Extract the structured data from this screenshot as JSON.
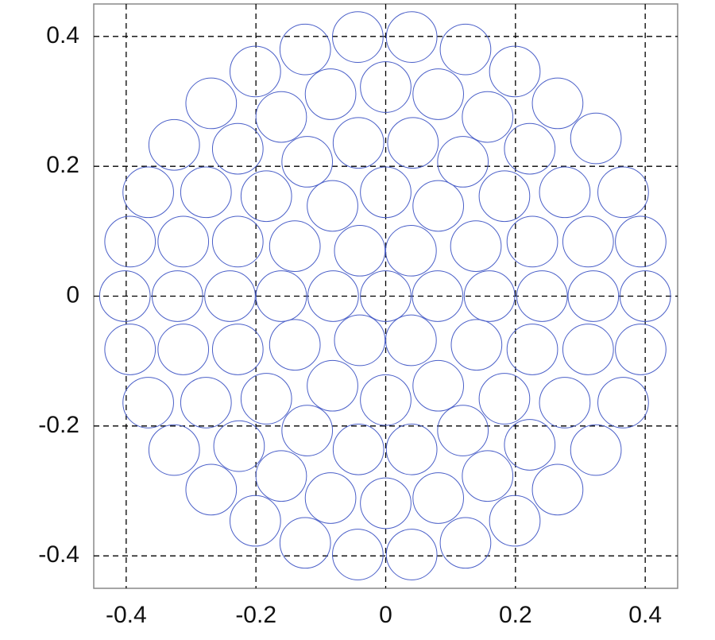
{
  "chart_data": {
    "type": "scatter",
    "x": [
      -0.402,
      -0.321,
      -0.24,
      -0.161,
      -0.081,
      0,
      0.08,
      0.16,
      0.241,
      0.32,
      0.4,
      -0.394,
      -0.312,
      -0.228,
      -0.14,
      -0.04,
      0.039,
      0.139,
      0.226,
      0.312,
      0.393,
      -0.394,
      -0.312,
      -0.228,
      -0.14,
      -0.04,
      0.039,
      0.14,
      0.226,
      0.312,
      0.393,
      -0.366,
      -0.277,
      -0.184,
      -0.082,
      0,
      0.081,
      0.183,
      0.276,
      0.366,
      -0.366,
      -0.277,
      -0.184,
      -0.082,
      0,
      0.081,
      0.183,
      0.276,
      0.366,
      -0.326,
      -0.228,
      -0.121,
      -0.042,
      0.042,
      0.119,
      0.222,
      0.324,
      -0.326,
      -0.226,
      -0.121,
      -0.042,
      0.04,
      0.119,
      0.222,
      0.324,
      -0.269,
      -0.161,
      -0.085,
      0,
      0.081,
      0.157,
      0.265,
      -0.269,
      -0.161,
      -0.085,
      0,
      0.081,
      0.157,
      0.265,
      -0.201,
      -0.124,
      -0.043,
      0.04,
      0.123,
      0.199,
      -0.201,
      -0.124,
      -0.043,
      0.04,
      0.123,
      0.199
    ],
    "y": [
      0,
      0,
      0,
      0,
      0,
      0,
      0,
      0,
      0,
      0,
      0,
      0.084,
      0.084,
      0.084,
      0.077,
      0.07,
      0.07,
      0.077,
      0.084,
      0.084,
      0.084,
      -0.082,
      -0.082,
      -0.082,
      -0.075,
      -0.068,
      -0.068,
      -0.075,
      -0.082,
      -0.082,
      -0.082,
      0.16,
      0.16,
      0.154,
      0.139,
      0.16,
      0.139,
      0.154,
      0.16,
      0.16,
      -0.164,
      -0.164,
      -0.158,
      -0.138,
      -0.16,
      -0.138,
      -0.158,
      -0.164,
      -0.164,
      0.233,
      0.227,
      0.207,
      0.236,
      0.236,
      0.207,
      0.227,
      0.243,
      -0.237,
      -0.231,
      -0.207,
      -0.236,
      -0.236,
      -0.207,
      -0.229,
      -0.237,
      0.297,
      0.276,
      0.311,
      0.322,
      0.311,
      0.276,
      0.297,
      -0.298,
      -0.277,
      -0.311,
      -0.319,
      -0.311,
      -0.277,
      -0.298,
      0.346,
      0.38,
      0.399,
      0.399,
      0.38,
      0.346,
      -0.346,
      -0.38,
      -0.398,
      -0.398,
      -0.38,
      -0.346
    ],
    "radius": 0.039,
    "color": "#4a5fc8",
    "xlim": [
      -0.45,
      0.45
    ],
    "ylim": [
      -0.45,
      0.45
    ],
    "xticks": [
      -0.4,
      -0.2,
      0,
      0.2,
      0.4
    ],
    "yticks": [
      -0.4,
      -0.2,
      0,
      0.2,
      0.4
    ],
    "grid": true
  }
}
